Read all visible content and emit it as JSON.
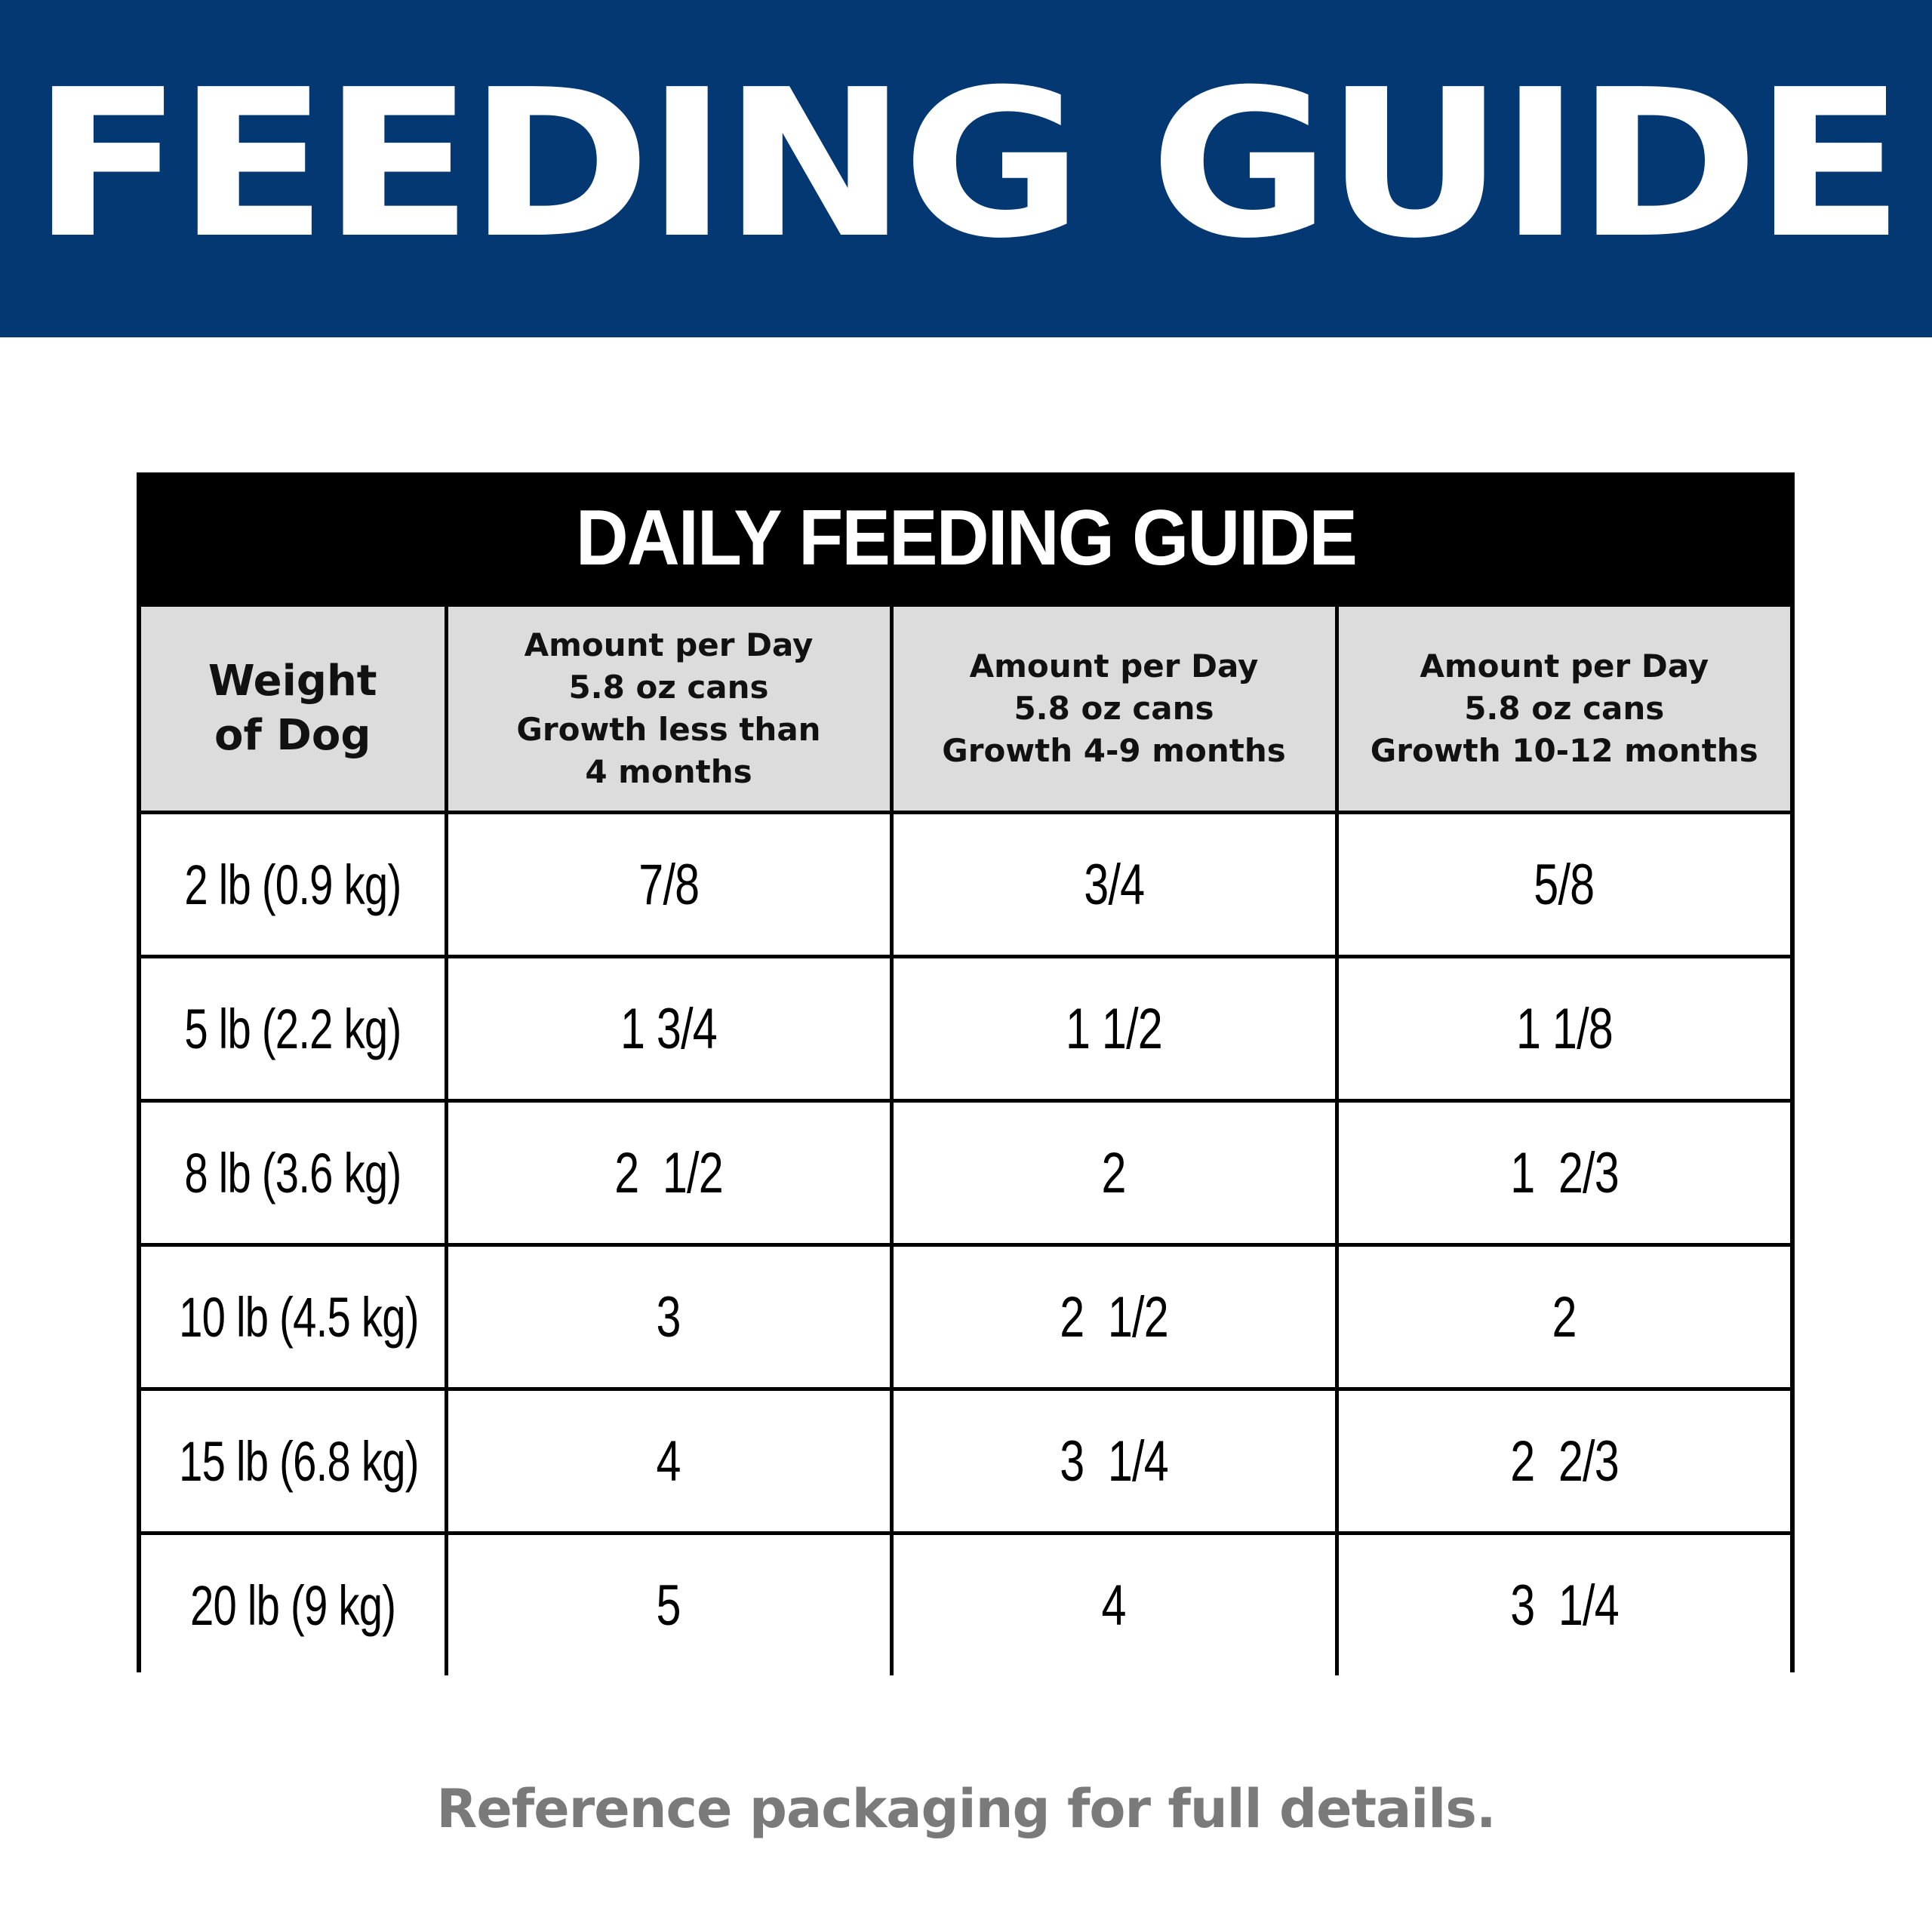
{
  "banner": {
    "title": "FEEDING GUIDE"
  },
  "table": {
    "title": "DAILY FEEDING GUIDE",
    "headers": [
      "Weight\nof Dog",
      "Amount per Day\n5.8 oz cans\nGrowth less than\n4 months",
      "Amount per Day\n5.8 oz cans\nGrowth 4-9 months",
      "Amount per Day\n5.8 oz cans\nGrowth 10-12 months"
    ],
    "rows": [
      [
        "2 lb (0.9 kg)",
        "7/8",
        "3/4",
        "5/8"
      ],
      [
        "5 lb (2.2 kg)",
        "1 3/4",
        "1 1/2",
        "1 1/8"
      ],
      [
        "8 lb (3.6 kg)",
        "2  1/2",
        "2",
        "1  2/3"
      ],
      [
        "10 lb (4.5 kg)",
        "3",
        "2  1/2",
        "2"
      ],
      [
        "15 lb (6.8 kg)",
        "4",
        "3  1/4",
        "2  2/3"
      ],
      [
        "20 lb (9 kg)",
        "5",
        "4",
        "3  1/4"
      ]
    ]
  },
  "footer": {
    "note": "Reference packaging for full details."
  },
  "colors": {
    "banner_background": "#043873",
    "banner_text": "#ffffff",
    "table_title_background": "#000000",
    "header_background": "#dcdcdc",
    "footer_text": "#7a7a7a"
  }
}
